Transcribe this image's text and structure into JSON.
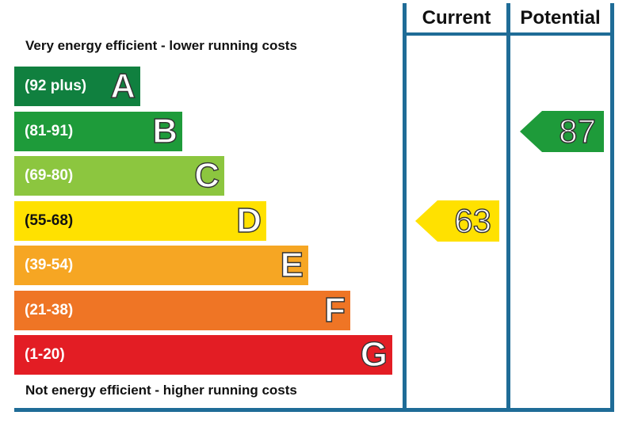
{
  "chart_data": {
    "type": "bar",
    "notes": {
      "top": "Very energy efficient - lower running costs",
      "bottom": "Not energy efficient - higher running costs"
    },
    "bands": [
      {
        "range": "(92 plus)",
        "letter": "A",
        "color": "#10803f"
      },
      {
        "range": "(81-91)",
        "letter": "B",
        "color": "#1e9b3a"
      },
      {
        "range": "(69-80)",
        "letter": "C",
        "color": "#8cc63f"
      },
      {
        "range": "(55-68)",
        "letter": "D",
        "color": "#ffe100"
      },
      {
        "range": "(39-54)",
        "letter": "E",
        "color": "#f6a623"
      },
      {
        "range": "(21-38)",
        "letter": "F",
        "color": "#ef7525"
      },
      {
        "range": "(1-20)",
        "letter": "G",
        "color": "#e31d24"
      }
    ],
    "columns": [
      "Current",
      "Potential"
    ],
    "ratings": [
      {
        "column": "Current",
        "value": 63,
        "band": "D",
        "color": "#ffe100"
      },
      {
        "column": "Potential",
        "value": 87,
        "band": "B",
        "color": "#1e9b3a"
      }
    ],
    "frame_color": "#1f6c97"
  }
}
